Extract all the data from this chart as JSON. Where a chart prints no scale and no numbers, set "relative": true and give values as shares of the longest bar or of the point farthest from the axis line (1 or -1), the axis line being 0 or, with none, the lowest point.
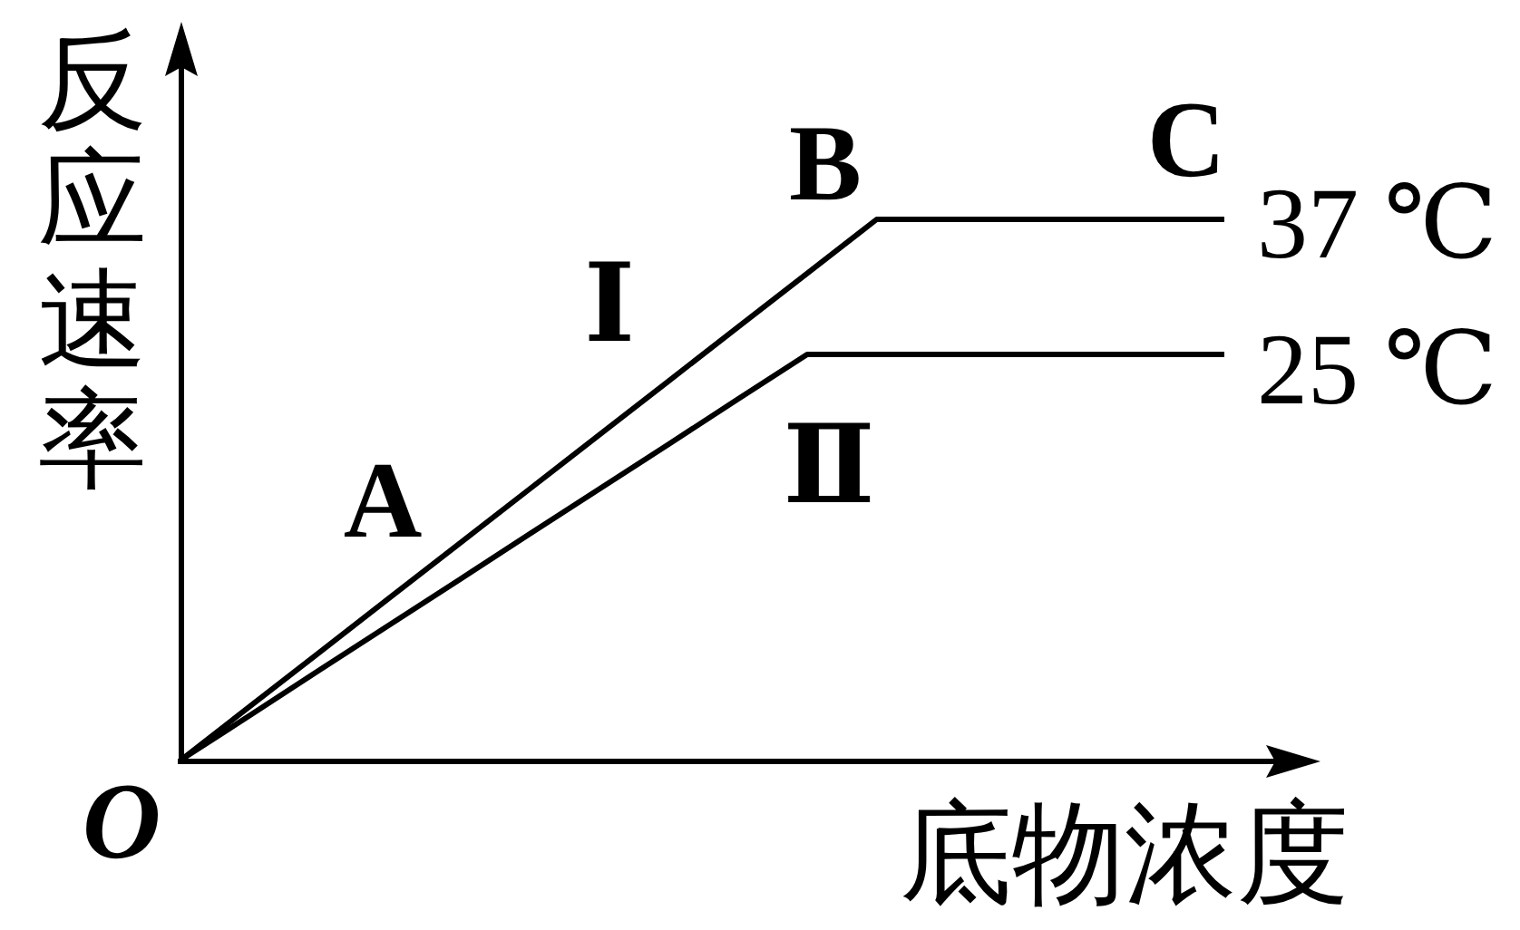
{
  "chart_data": {
    "type": "line",
    "xlabel": "底物浓度",
    "ylabel": "反应速率",
    "categories": [
      null,
      null,
      null,
      null,
      null,
      null,
      null,
      null,
      null,
      null,
      null,
      null,
      null,
      null,
      null,
      null
    ],
    "series": [
      {
        "name": "37 ℃",
        "color": "#000000",
        "values": [
          0,
          0.1,
          0.2,
          0.3,
          0.4,
          0.5,
          0.6,
          0.7,
          0.8,
          0.9,
          1,
          1,
          1,
          1,
          1,
          1
        ]
      },
      {
        "name": "25 ℃",
        "color": "#000000",
        "values": [
          0,
          0.083,
          0.167,
          0.25,
          0.333,
          0.417,
          0.5,
          0.583,
          0.667,
          0.75,
          0.75,
          0.75,
          0.75,
          0.75,
          0.75,
          0.75
        ]
      }
    ],
    "relative": true,
    "line_style": "solid",
    "annotations": [
      "A",
      "B",
      "C",
      "Ⅰ",
      "Ⅱ",
      "O"
    ]
  }
}
